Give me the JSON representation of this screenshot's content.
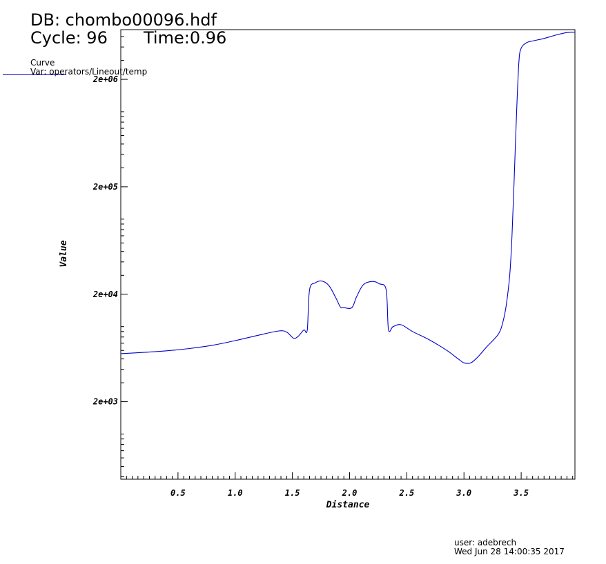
{
  "header": {
    "db": "DB: chombo00096.hdf",
    "cycle": "Cycle: 96",
    "time": "Time:0.96"
  },
  "legend": {
    "title": "Curve",
    "var": "Var: operators/Lineout/temp"
  },
  "footer": {
    "user": "user: adebrech",
    "date": "Wed Jun 28 14:00:35 2017"
  },
  "colors": {
    "curve": "#0000cc",
    "axes": "#000000"
  },
  "chart_data": {
    "type": "line",
    "title": "",
    "xlabel": "Distance",
    "ylabel": "Value",
    "y_scale": "log",
    "xlim": [
      0.0,
      3.97
    ],
    "ylim": [
      380,
      5800000
    ],
    "x_ticks": [
      0.5,
      1.0,
      1.5,
      2.0,
      2.5,
      3.0,
      3.5
    ],
    "x_tick_labels": [
      "0.5",
      "1.0",
      "1.5",
      "2.0",
      "2.5",
      "3.0",
      "3.5"
    ],
    "y_ticks": [
      2000,
      20000,
      200000,
      2000000
    ],
    "y_tick_labels": [
      "2e+03",
      "2e+04",
      "2e+05",
      "2e+06"
    ],
    "series": [
      {
        "x": [
          0.0,
          0.2,
          0.4,
          0.6,
          0.8,
          1.0,
          1.2,
          1.38,
          1.45,
          1.51,
          1.55,
          1.6,
          1.63,
          1.65,
          1.7,
          1.76,
          1.82,
          1.88,
          1.92,
          1.95,
          2.02,
          2.06,
          2.12,
          2.2,
          2.26,
          2.32,
          2.34,
          2.38,
          2.45,
          2.55,
          2.7,
          2.85,
          2.95,
          3.0,
          3.06,
          3.12,
          3.2,
          3.3,
          3.34,
          3.37,
          3.4,
          3.42,
          3.44,
          3.46,
          3.48,
          3.5,
          3.55,
          3.6,
          3.7,
          3.8,
          3.9,
          3.97
        ],
        "y": [
          5600,
          5750,
          5950,
          6250,
          6700,
          7400,
          8300,
          9100,
          8900,
          7800,
          8100,
          9300,
          9300,
          22000,
          25500,
          26500,
          24000,
          18500,
          15200,
          15000,
          15000,
          18800,
          24500,
          26300,
          25000,
          22000,
          9400,
          10000,
          10400,
          9000,
          7500,
          6000,
          5000,
          4600,
          4600,
          5200,
          6500,
          8500,
          11000,
          16000,
          30000,
          70000,
          260000,
          1000000,
          2900000,
          3900000,
          4400000,
          4550000,
          4800000,
          5150000,
          5450000,
          5500000
        ]
      }
    ]
  }
}
